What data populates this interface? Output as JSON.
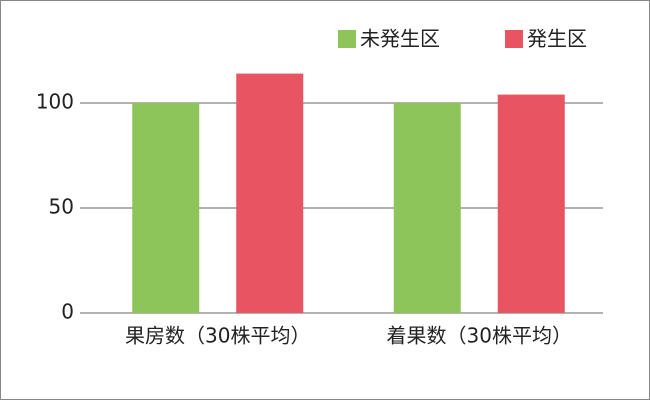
{
  "chart_data": {
    "type": "bar",
    "categories": [
      "果房数（30株平均）",
      "着果数（30株平均）"
    ],
    "series": [
      {
        "name": "未発生区",
        "color": "#8dc55a",
        "values": [
          100,
          100
        ]
      },
      {
        "name": "発生区",
        "color": "#e85462",
        "values": [
          114,
          104
        ]
      }
    ],
    "ylim": [
      0,
      120
    ],
    "yticks": [
      0,
      50,
      100
    ],
    "grid": true
  }
}
